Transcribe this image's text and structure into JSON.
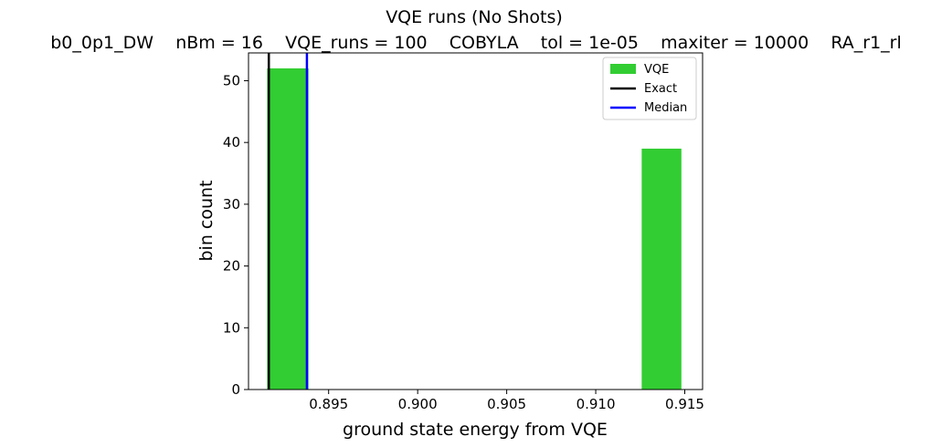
{
  "chart_data": {
    "type": "histogram",
    "title": "VQE runs (No Shots)",
    "subtitle": "b0_0p1_DW    nBm = 16    VQE_runs = 100    COBYLA    tol = 1e-05    maxiter = 10000    RA_r1_rl",
    "xlabel": "ground state energy from VQE",
    "ylabel": "bin count",
    "xlim": [
      0.8905,
      0.916
    ],
    "ylim": [
      0,
      54.5
    ],
    "xticks": [
      0.895,
      0.9,
      0.905,
      0.91,
      0.915
    ],
    "xtick_labels": [
      "0.895",
      "0.900",
      "0.905",
      "0.910",
      "0.915"
    ],
    "yticks": [
      0,
      10,
      20,
      30,
      40,
      50
    ],
    "ytick_labels": [
      "0",
      "10",
      "20",
      "30",
      "40",
      "50"
    ],
    "grid": false,
    "legend_position": "top-right",
    "bars": [
      {
        "x0": 0.89155,
        "x1": 0.89387,
        "value": 52
      },
      {
        "x0": 0.91258,
        "x1": 0.91481,
        "value": 39
      }
    ],
    "vlines": [
      {
        "name": "Exact",
        "x": 0.89164,
        "color": "#000000"
      },
      {
        "name": "Median",
        "x": 0.89378,
        "color": "#0000ff"
      }
    ],
    "legend": [
      {
        "label": "VQE",
        "kind": "patch",
        "color": "#32cd32"
      },
      {
        "label": "Exact",
        "kind": "line",
        "color": "#000000"
      },
      {
        "label": "Median",
        "kind": "line",
        "color": "#0000ff"
      }
    ],
    "colors": {
      "bars": "#32cd32",
      "exact": "#000000",
      "median": "#0000ff"
    }
  }
}
